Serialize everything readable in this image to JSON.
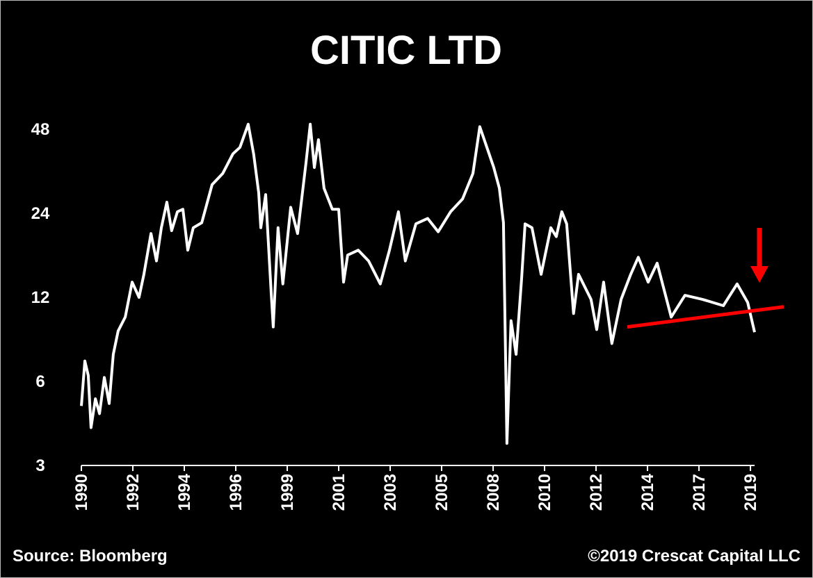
{
  "chart_data": {
    "type": "line",
    "title": "CITIC LTD",
    "source": "Source: Bloomberg",
    "credit": "©2019 Crescat Capital LLC",
    "log_scale": true,
    "xlim": [
      1990,
      2019.3
    ],
    "ylim": [
      3,
      60
    ],
    "yticks": [
      3,
      6,
      12,
      24,
      48
    ],
    "xticks": [
      {
        "value": 1990.0,
        "label": "1990"
      },
      {
        "value": 1992.24,
        "label": "1992"
      },
      {
        "value": 1994.48,
        "label": "1994"
      },
      {
        "value": 1996.72,
        "label": "1996"
      },
      {
        "value": 1998.96,
        "label": "1999"
      },
      {
        "value": 2001.2,
        "label": "2001"
      },
      {
        "value": 2003.44,
        "label": "2003"
      },
      {
        "value": 2005.68,
        "label": "2005"
      },
      {
        "value": 2007.92,
        "label": "2008"
      },
      {
        "value": 2010.16,
        "label": "2010"
      },
      {
        "value": 2012.4,
        "label": "2012"
      },
      {
        "value": 2014.64,
        "label": "2014"
      },
      {
        "value": 2016.88,
        "label": "2017"
      },
      {
        "value": 2019.12,
        "label": "2019"
      }
    ],
    "x": [
      1990.0,
      1990.15,
      1990.3,
      1990.42,
      1990.61,
      1990.79,
      1991.0,
      1991.21,
      1991.39,
      1991.6,
      1991.91,
      1992.21,
      1992.51,
      1992.72,
      1993.03,
      1993.27,
      1993.48,
      1993.72,
      1993.93,
      1994.18,
      1994.42,
      1994.63,
      1994.87,
      1995.24,
      1995.69,
      1996.15,
      1996.6,
      1996.9,
      1997.26,
      1997.5,
      1997.72,
      1997.81,
      1998.02,
      1998.26,
      1998.35,
      1998.56,
      1998.77,
      1999.11,
      1999.41,
      1999.78,
      1999.96,
      2000.14,
      2000.32,
      2000.56,
      2000.92,
      2001.2,
      2001.41,
      2001.59,
      2002.05,
      2002.5,
      2003.01,
      2003.41,
      2003.8,
      2004.1,
      2004.56,
      2005.07,
      2005.53,
      2006.07,
      2006.59,
      2007.04,
      2007.34,
      2007.65,
      2007.95,
      2008.19,
      2008.37,
      2008.52,
      2008.7,
      2008.92,
      2009.16,
      2009.31,
      2009.61,
      2010.01,
      2010.43,
      2010.67,
      2010.91,
      2011.12,
      2011.42,
      2011.64,
      2012.18,
      2012.43,
      2012.73,
      2013.09,
      2013.49,
      2013.91,
      2014.24,
      2014.67,
      2015.06,
      2015.67,
      2016.27,
      2017.03,
      2017.94,
      2018.54,
      2019.0,
      2019.3
    ],
    "series": [
      {
        "color": "#ffffff",
        "values": [
          4.9,
          7.1,
          6.3,
          4.1,
          5.2,
          4.6,
          6.2,
          5.0,
          7.5,
          9.1,
          10.2,
          13.6,
          12,
          14.5,
          20.3,
          16.2,
          21.3,
          26.3,
          20.8,
          24.3,
          24.8,
          17.7,
          21.3,
          22.2,
          30.4,
          33.3,
          39.2,
          41.3,
          50,
          39,
          28.4,
          21.3,
          28,
          12.5,
          9.4,
          21.3,
          13.4,
          25.2,
          20.3,
          36.6,
          50,
          35,
          44,
          29.5,
          24.8,
          24.8,
          13.6,
          17,
          17.7,
          16.2,
          13.4,
          17.7,
          24.3,
          16.2,
          22,
          23,
          20.6,
          24.3,
          27,
          33.3,
          49,
          41.3,
          35,
          29.5,
          22.2,
          3.6,
          9.9,
          7.5,
          14.0,
          22,
          21.3,
          14.5,
          21.3,
          19.8,
          24.3,
          22,
          10.5,
          14.5,
          11.8,
          9.2,
          13.6,
          8.2,
          11.8,
          14.5,
          16.7,
          13.6,
          15.9,
          10.2,
          12.2,
          11.8,
          11.2,
          13.4,
          11.5,
          9.0
        ]
      }
    ],
    "trendline": {
      "color": "#ff0000",
      "x": [
        2013.76,
        2020.57
      ],
      "values": [
        9.4,
        11.1
      ]
    }
  }
}
